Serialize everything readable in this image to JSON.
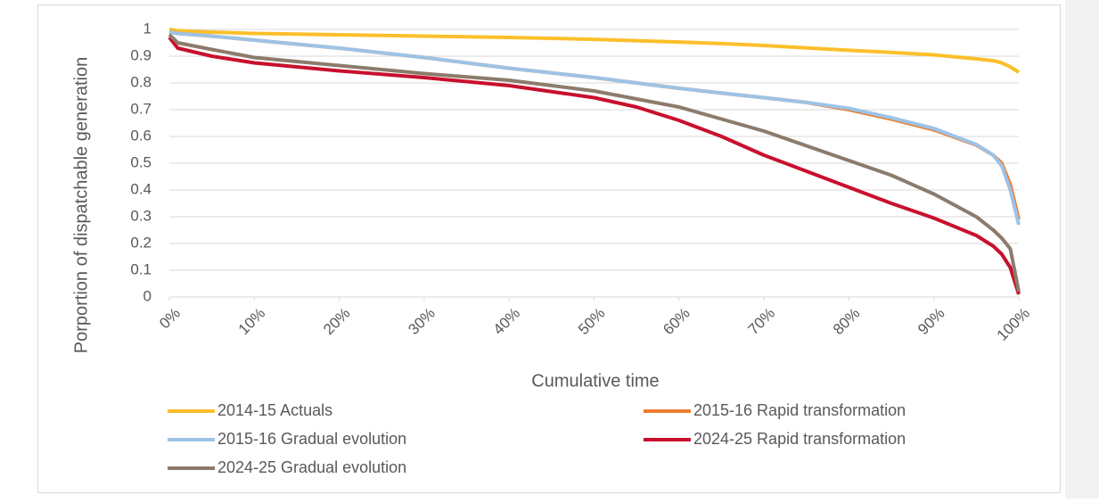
{
  "chart_data": {
    "type": "line",
    "x_label": "Cumulative time",
    "y_label": "Porportion of dispatchable generation",
    "x": [
      0,
      1,
      5,
      10,
      20,
      30,
      40,
      50,
      55,
      60,
      65,
      70,
      75,
      80,
      85,
      90,
      95,
      97,
      98,
      99,
      100
    ],
    "series": [
      {
        "name": "2014-15 Actuals",
        "color": "#fbbf2a",
        "values": [
          1,
          0.995,
          0.99,
          0.985,
          0.98,
          0.975,
          0.97,
          0.963,
          0.958,
          0.953,
          0.947,
          0.94,
          0.931,
          0.922,
          0.914,
          0.905,
          0.89,
          0.883,
          0.875,
          0.86,
          0.84
        ]
      },
      {
        "name": "2015-16 Rapid transformation",
        "color": "#ed7d31",
        "values": [
          0.99,
          0.985,
          0.975,
          0.96,
          0.93,
          0.895,
          0.855,
          0.82,
          0.8,
          0.78,
          0.762,
          0.745,
          0.727,
          0.7,
          0.665,
          0.625,
          0.568,
          0.53,
          0.5,
          0.42,
          0.29
        ]
      },
      {
        "name": "2015-16 Gradual evolution",
        "color": "#9dc3e6",
        "values": [
          0.99,
          0.985,
          0.975,
          0.96,
          0.93,
          0.895,
          0.855,
          0.82,
          0.8,
          0.78,
          0.762,
          0.745,
          0.727,
          0.705,
          0.67,
          0.63,
          0.57,
          0.53,
          0.49,
          0.4,
          0.27
        ]
      },
      {
        "name": "2024-25 Rapid transformation",
        "color": "#c8102e",
        "values": [
          0.97,
          0.93,
          0.9,
          0.875,
          0.845,
          0.82,
          0.79,
          0.745,
          0.71,
          0.66,
          0.6,
          0.53,
          0.47,
          0.41,
          0.35,
          0.295,
          0.23,
          0.19,
          0.16,
          0.11,
          0.01
        ]
      },
      {
        "name": "2024-25 Gradual evolution",
        "color": "#8c7b6b",
        "values": [
          0.98,
          0.95,
          0.925,
          0.895,
          0.865,
          0.835,
          0.81,
          0.77,
          0.74,
          0.71,
          0.665,
          0.62,
          0.565,
          0.51,
          0.455,
          0.385,
          0.3,
          0.25,
          0.22,
          0.18,
          0.02
        ]
      }
    ],
    "xlim": [
      0,
      100
    ],
    "xticks": [
      {
        "value": 0,
        "label": "0%"
      },
      {
        "value": 10,
        "label": "10%"
      },
      {
        "value": 20,
        "label": "20%"
      },
      {
        "value": 30,
        "label": "30%"
      },
      {
        "value": 40,
        "label": "40%"
      },
      {
        "value": 50,
        "label": "50%"
      },
      {
        "value": 60,
        "label": "60%"
      },
      {
        "value": 70,
        "label": "70%"
      },
      {
        "value": 80,
        "label": "80%"
      },
      {
        "value": 90,
        "label": "90%"
      },
      {
        "value": 100,
        "label": "100%"
      }
    ],
    "ylim": [
      0,
      1
    ],
    "yticks": [
      0,
      0.1,
      0.2,
      0.3,
      0.4,
      0.5,
      0.6,
      0.7,
      0.8,
      0.9,
      1
    ],
    "grid": true
  }
}
